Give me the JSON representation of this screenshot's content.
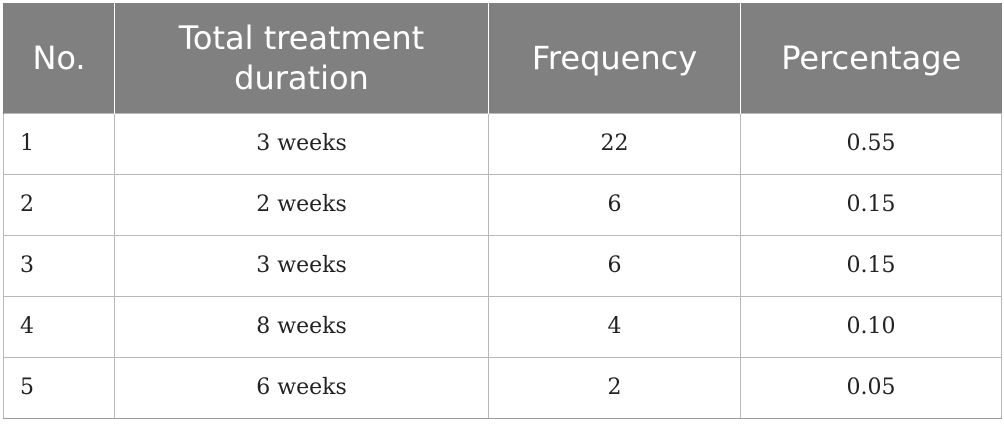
{
  "table": {
    "headers": [
      "No.",
      "Total treatment duration",
      "Frequency",
      "Percentage"
    ],
    "rows": [
      {
        "no": "1",
        "duration": "3 weeks",
        "frequency": "22",
        "percentage": "0.55"
      },
      {
        "no": "2",
        "duration": "2 weeks",
        "frequency": "6",
        "percentage": "0.15"
      },
      {
        "no": "3",
        "duration": "3 weeks",
        "frequency": "6",
        "percentage": "0.15"
      },
      {
        "no": "4",
        "duration": "8 weeks",
        "frequency": "4",
        "percentage": "0.10"
      },
      {
        "no": "5",
        "duration": "6 weeks",
        "frequency": "2",
        "percentage": "0.05"
      }
    ]
  },
  "colors": {
    "header_background": "#808080",
    "header_text": "#ffffff",
    "grid_line": "#b8b8b8"
  }
}
